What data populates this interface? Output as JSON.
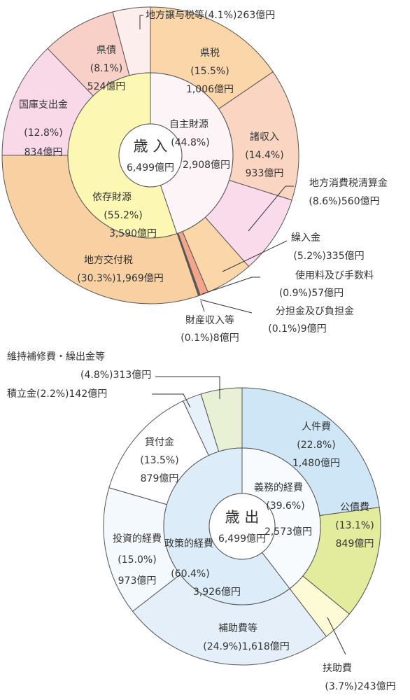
{
  "chart_data": [
    {
      "type": "donut",
      "title": "歳 入",
      "total": {
        "value": 6499,
        "label": "6,499億円"
      },
      "inner": {
        "categories": [
          "自主財源",
          "依存財源"
        ],
        "values": [
          44.8,
          55.2
        ],
        "value_labels": [
          "(44.8%)",
          "(55.2%)"
        ],
        "amounts": [
          2908,
          3590
        ],
        "amount_labels": [
          "2,908億円",
          "3,590億円"
        ],
        "colors": [
          "#fdf4f7",
          "#fdf7b4"
        ]
      },
      "outer": {
        "categories": [
          "県税",
          "諸収入",
          "地方消費税清算金",
          "繰入金",
          "使用料及び手数料",
          "分担金及び負担金",
          "財産収入等",
          "地方交付税",
          "国庫支出金",
          "県債",
          "地方譲与税等"
        ],
        "values": [
          15.5,
          14.4,
          8.6,
          5.2,
          0.9,
          0.1,
          0.1,
          30.3,
          12.8,
          8.1,
          4.1
        ],
        "value_labels": [
          "(15.5%)",
          "(14.4%)",
          "(8.6%)",
          "(5.2%)",
          "(0.9%)",
          "(0.1%)",
          "(0.1%)",
          "(30.3%)",
          "(12.8%)",
          "(8.1%)",
          "(4.1%)"
        ],
        "amounts": [
          1006,
          933,
          560,
          335,
          57,
          9,
          8,
          1969,
          834,
          524,
          263
        ],
        "amount_labels": [
          "1,006億円",
          "933億円",
          "560億円",
          "335億円",
          "57億円",
          "9億円",
          "8億円",
          "1,969億円",
          "834億円",
          "524億円",
          "263億円"
        ],
        "colors": [
          "#fbd6a8",
          "#f9d5c2",
          "#f9dbec",
          "#fbd6a8",
          "#f2a58a",
          "#b07a68",
          "#7d5a4c",
          "#f9d0a2",
          "#f9d8e8",
          "#f8d0c8",
          "#fdeeee"
        ]
      }
    },
    {
      "type": "donut",
      "title": "歳 出",
      "total": {
        "value": 6499,
        "label": "6,499億円"
      },
      "inner": {
        "categories": [
          "義務的経費",
          "政策的経費"
        ],
        "values": [
          39.6,
          60.4
        ],
        "value_labels": [
          "(39.6%)",
          "(60.4%)"
        ],
        "amounts": [
          2573,
          3926
        ],
        "amount_labels": [
          "2,573億円",
          "3,926億円"
        ],
        "colors": [
          "#f7fbfe",
          "#dcecf8"
        ]
      },
      "outer": {
        "categories": [
          "人件費",
          "公債費",
          "扶助費",
          "補助費等",
          "投資的経費",
          "貸付金",
          "積立金",
          "維持補修費・繰出金等"
        ],
        "values": [
          22.8,
          13.1,
          3.7,
          24.9,
          15.0,
          13.5,
          2.2,
          4.8
        ],
        "value_labels": [
          "(22.8%)",
          "(13.1%)",
          "(3.7%)",
          "(24.9%)",
          "(15.0%)",
          "(13.5%)",
          "(2.2%)",
          "(4.8%)"
        ],
        "amounts": [
          1480,
          849,
          243,
          1618,
          973,
          879,
          142,
          313
        ],
        "amount_labels": [
          "1,480億円",
          "849億円",
          "243億円",
          "1,618億円",
          "973億円",
          "879億円",
          "142億円",
          "313億円"
        ],
        "colors": [
          "#cfe6f7",
          "#e3eb9c",
          "#fdfbd6",
          "#e4effa",
          "#f4f9fd",
          "#ffffff",
          "#e6f1fa",
          "#e8f1d6"
        ]
      }
    }
  ]
}
